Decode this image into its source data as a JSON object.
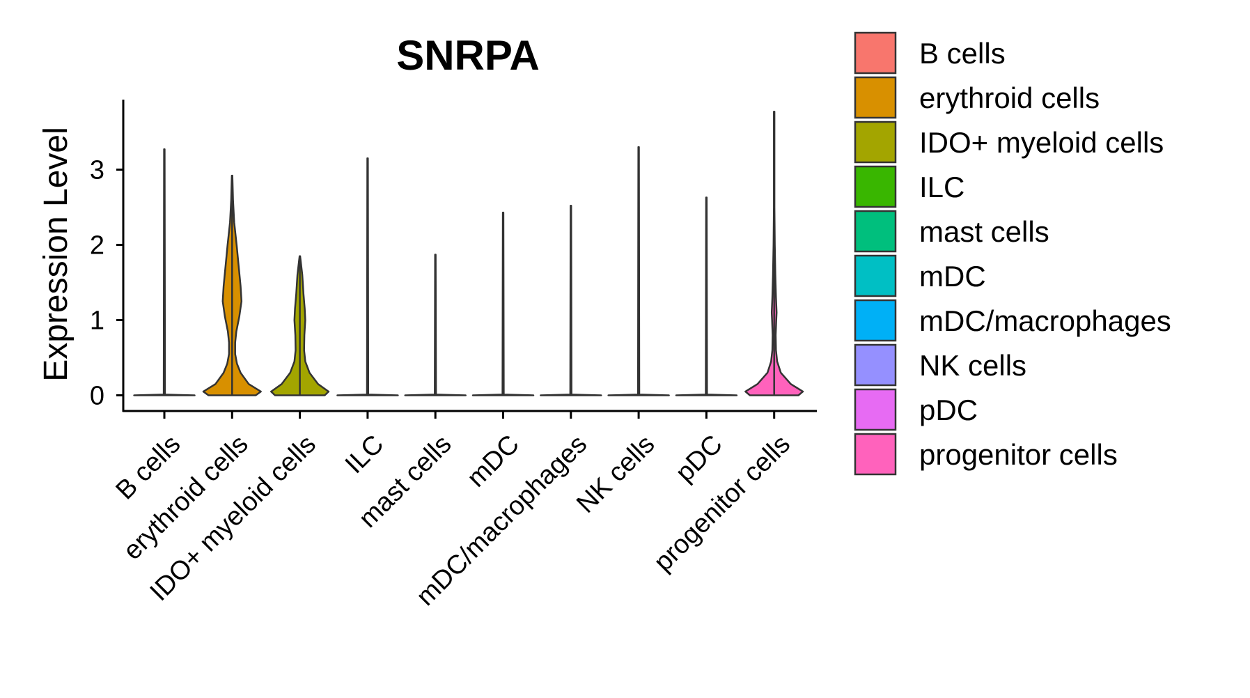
{
  "chart_data": {
    "type": "violin",
    "title": "SNRPA",
    "xlabel": "",
    "ylabel": "Expression Level",
    "ylim": [
      0,
      3.9
    ],
    "yticks": [
      0,
      1,
      2,
      3
    ],
    "legend_position": "right",
    "categories": [
      "B cells",
      "erythroid cells",
      "IDO+ myeloid cells",
      "ILC",
      "mast cells",
      "mDC",
      "mDC/macrophages",
      "NK cells",
      "pDC",
      "progenitor cells"
    ],
    "colors": [
      "#F8766D",
      "#D89000",
      "#A3A500",
      "#39B600",
      "#00BF7D",
      "#00BFC4",
      "#00B0F6",
      "#9590FF",
      "#E76BF3",
      "#FF62BC"
    ],
    "max_values": [
      3.27,
      2.92,
      1.85,
      3.15,
      1.87,
      2.43,
      2.52,
      3.3,
      2.63,
      3.77
    ],
    "density_profiles": [
      [
        [
          0,
          1
        ],
        [
          0.01,
          0.02
        ],
        [
          3.27,
          0.01
        ]
      ],
      [
        [
          0,
          0.78
        ],
        [
          0.05,
          0.95
        ],
        [
          0.15,
          0.55
        ],
        [
          0.3,
          0.28
        ],
        [
          0.42,
          0.16
        ],
        [
          0.55,
          0.1
        ],
        [
          0.7,
          0.1
        ],
        [
          0.85,
          0.14
        ],
        [
          1.05,
          0.24
        ],
        [
          1.25,
          0.31
        ],
        [
          1.45,
          0.28
        ],
        [
          1.7,
          0.22
        ],
        [
          2.0,
          0.15
        ],
        [
          2.3,
          0.07
        ],
        [
          2.6,
          0.03
        ],
        [
          2.92,
          0.01
        ]
      ],
      [
        [
          0,
          0.82
        ],
        [
          0.05,
          0.95
        ],
        [
          0.15,
          0.6
        ],
        [
          0.3,
          0.32
        ],
        [
          0.45,
          0.18
        ],
        [
          0.6,
          0.14
        ],
        [
          0.8,
          0.15
        ],
        [
          1.0,
          0.18
        ],
        [
          1.15,
          0.16
        ],
        [
          1.35,
          0.12
        ],
        [
          1.6,
          0.08
        ],
        [
          1.85,
          0.01
        ]
      ],
      [
        [
          0,
          1
        ],
        [
          0.01,
          0.02
        ],
        [
          3.15,
          0.01
        ]
      ],
      [
        [
          0,
          1
        ],
        [
          0.01,
          0.02
        ],
        [
          1.87,
          0.01
        ]
      ],
      [
        [
          0,
          1
        ],
        [
          0.01,
          0.02
        ],
        [
          2.43,
          0.01
        ]
      ],
      [
        [
          0,
          1
        ],
        [
          0.01,
          0.02
        ],
        [
          2.52,
          0.01
        ]
      ],
      [
        [
          0,
          1
        ],
        [
          0.01,
          0.02
        ],
        [
          3.3,
          0.01
        ]
      ],
      [
        [
          0,
          1
        ],
        [
          0.01,
          0.02
        ],
        [
          2.63,
          0.01
        ]
      ],
      [
        [
          0,
          0.8
        ],
        [
          0.05,
          0.95
        ],
        [
          0.15,
          0.55
        ],
        [
          0.3,
          0.22
        ],
        [
          0.45,
          0.1
        ],
        [
          0.6,
          0.06
        ],
        [
          0.8,
          0.05
        ],
        [
          1.0,
          0.07
        ],
        [
          1.1,
          0.08
        ],
        [
          1.3,
          0.06
        ],
        [
          1.6,
          0.04
        ],
        [
          2.0,
          0.02
        ],
        [
          2.5,
          0.01
        ],
        [
          3.2,
          0.01
        ],
        [
          3.77,
          0.01
        ]
      ]
    ]
  }
}
